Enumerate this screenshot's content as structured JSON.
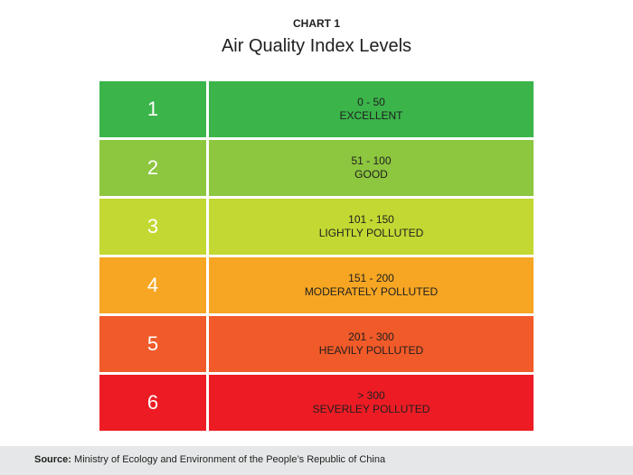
{
  "header": {
    "chart_label": "CHART 1",
    "title": "Air Quality Index Levels"
  },
  "chart_data": {
    "type": "table",
    "title": "Air Quality Index Levels",
    "rows": [
      {
        "level": "1",
        "range": "0 - 50",
        "category": "EXCELLENT",
        "color": "#3bb54a"
      },
      {
        "level": "2",
        "range": "51 - 100",
        "category": "GOOD",
        "color": "#8dc63f"
      },
      {
        "level": "3",
        "range": "101 - 150",
        "category": "LIGHTLY POLLUTED",
        "color": "#c3d832"
      },
      {
        "level": "4",
        "range": "151 - 200",
        "category": "MODERATELY POLLUTED",
        "color": "#f6a623"
      },
      {
        "level": "5",
        "range": "201 - 300",
        "category": "HEAVILY POLLUTED",
        "color": "#f15a29"
      },
      {
        "level": "6",
        "range": "> 300",
        "category": "SEVERLEY POLLUTED",
        "color": "#ed1c24"
      }
    ]
  },
  "footer": {
    "source_label": "Source:",
    "source_text": "Ministry of Ecology and Environment of the People’s Republic of China"
  }
}
